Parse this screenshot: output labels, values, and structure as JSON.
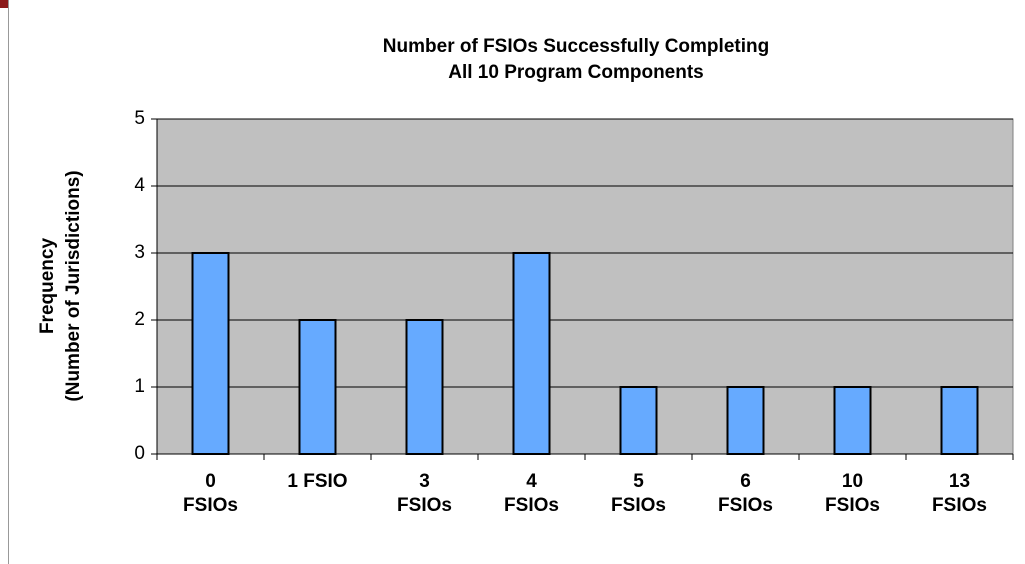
{
  "chart_data": {
    "type": "bar",
    "title": [
      "Number of FSIOs Successfully Completing",
      "All 10 Program Components"
    ],
    "y_label": [
      "Frequency",
      "(Number of Jurisdictions)"
    ],
    "categories": [
      "0 FSIOs",
      "1 FSIO",
      "3 FSIOs",
      "4 FSIOs",
      "5 FSIOs",
      "6 FSIOs",
      "10 FSIOs",
      "13 FSIOs"
    ],
    "values": [
      3,
      2,
      2,
      3,
      1,
      1,
      1,
      1
    ],
    "color": "#66aaff",
    "ylim": [
      0,
      5
    ],
    "yticks": [
      0,
      1,
      2,
      3,
      4,
      5
    ],
    "grid": true
  }
}
